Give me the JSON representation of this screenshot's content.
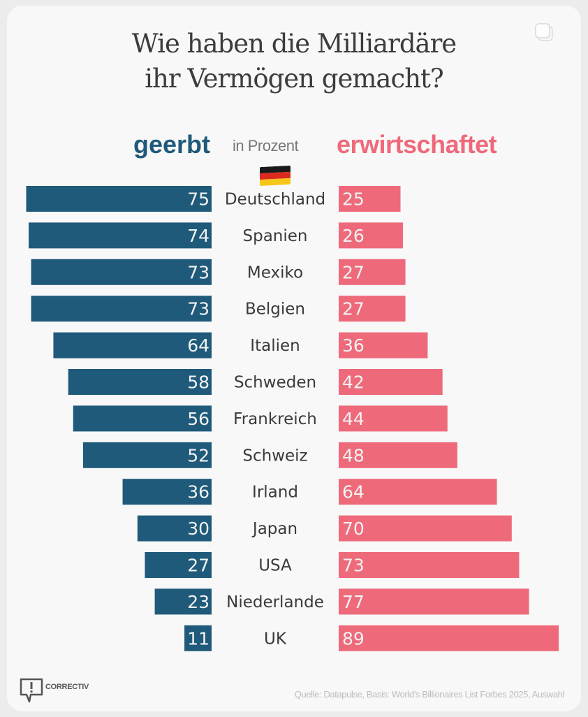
{
  "title_line1": "Wie haben die Milliardäre",
  "title_line2": "ihr Vermögen gemacht?",
  "legend": {
    "left": "geerbt",
    "middle": "in Prozent",
    "right": "erwirtschaftet"
  },
  "highlight_flag": "germany-flag",
  "colors": {
    "inherited": "#1f5a7a",
    "earned": "#ee6a7a"
  },
  "footer": {
    "logo_text": "CORRECTIV",
    "source": "Quelle: Datapulse, Basis: World’s Billionaires List Forbes 2025, Auswahl"
  },
  "icons": {
    "top_right": "copy-icon",
    "logo": "speech-bubble-exclamation-icon"
  },
  "chart_data": {
    "type": "bar",
    "orientation": "horizontal-diverging",
    "title": "Wie haben die Milliardäre ihr Vermögen gemacht?",
    "unit": "in Prozent",
    "categories": [
      "Deutschland",
      "Spanien",
      "Mexiko",
      "Belgien",
      "Italien",
      "Schweden",
      "Frankreich",
      "Schweiz",
      "Irland",
      "Japan",
      "USA",
      "Niederlande",
      "UK"
    ],
    "series": [
      {
        "name": "geerbt",
        "side": "left",
        "values": [
          75,
          74,
          73,
          73,
          64,
          58,
          56,
          52,
          36,
          30,
          27,
          23,
          11
        ]
      },
      {
        "name": "erwirtschaftet",
        "side": "right",
        "values": [
          25,
          26,
          27,
          27,
          36,
          42,
          44,
          48,
          64,
          70,
          73,
          77,
          89
        ]
      }
    ],
    "xlim": [
      0,
      100
    ],
    "grid": false,
    "legend": "top"
  }
}
